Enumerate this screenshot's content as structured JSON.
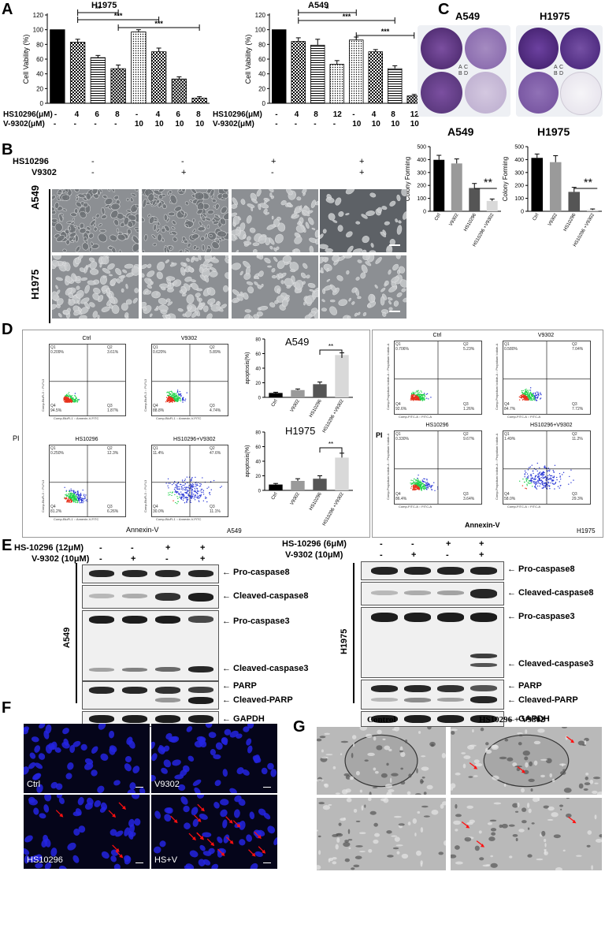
{
  "panels": {
    "A": "A",
    "B": "B",
    "C": "C",
    "D": "D",
    "E": "E",
    "F": "F",
    "G": "G"
  },
  "panel_A": {
    "left_title": "H1975",
    "right_title": "A549",
    "ylabel": "Cell Vability (%)",
    "row1_label": "HS10296(μM)",
    "row2_label": "V-9302(μM)",
    "left_row1": [
      "-",
      "4",
      "6",
      "8",
      "-",
      "4",
      "6",
      "8"
    ],
    "left_row2": [
      "-",
      "-",
      "-",
      "-",
      "10",
      "10",
      "10",
      "10"
    ],
    "right_row1": [
      "-",
      "4",
      "8",
      "12",
      "-",
      "4",
      "8",
      "12"
    ],
    "right_row2": [
      "-",
      "-",
      "-",
      "-",
      "10",
      "10",
      "10",
      "10"
    ],
    "left_sig": [
      "**",
      "***",
      "***"
    ],
    "right_sig": [
      "*",
      "***",
      "***"
    ],
    "ticks": [
      "0",
      "20",
      "40",
      "60",
      "80",
      "100",
      "120"
    ]
  },
  "panel_B": {
    "row1_label": "HS10296",
    "row2_label": "V9302",
    "row1": [
      "-",
      "-",
      "+",
      "+"
    ],
    "row2": [
      "-",
      "+",
      "-",
      "+"
    ],
    "cell_lines": [
      "A549",
      "H1975"
    ]
  },
  "panel_C": {
    "plate_titles": [
      "A549",
      "H1975"
    ],
    "well_letters": [
      "A",
      "B",
      "C",
      "D"
    ],
    "chart_titles": [
      "A549",
      "H1975"
    ],
    "ylabel": "Colony Forming",
    "xcats": [
      "Ctrl",
      "V9302",
      "HS10296",
      "HS10296 +V9302"
    ],
    "sig": "**",
    "ticks": [
      "0",
      "100",
      "200",
      "300",
      "400",
      "500"
    ]
  },
  "panel_D": {
    "a549_flow_titles": [
      "Ctrl",
      "V9302",
      "HS10296",
      "HS10296+V9302"
    ],
    "a549_q2": [
      "3.61%",
      "5.89%",
      "12.3%",
      "47.6%"
    ],
    "a549_q3": [
      "1.87%",
      "4.74%",
      "6.26%",
      "11.1%"
    ],
    "a549_q1": [
      "0.209%",
      "0.620%",
      "0.250%",
      "11.4%"
    ],
    "a549_q4": [
      "94.5%",
      "88.8%",
      "81.2%",
      "30.0%"
    ],
    "h1975_flow_titles": [
      "Ctrl",
      "V9302",
      "HS10296",
      "HS10296+V9302"
    ],
    "h1975_q2": [
      "5.23%",
      "7.04%",
      "9.67%",
      "11.2%"
    ],
    "h1975_q3": [
      "1.26%",
      "7.72%",
      "3.64%",
      "29.3%"
    ],
    "h1975_q1": [
      "0.706%",
      "0.580%",
      "0.330%",
      "1.49%"
    ],
    "h1975_q4": [
      "92.6%",
      "84.7%",
      "86.4%",
      "58.0%"
    ],
    "pi_label": "PI",
    "annexin_label": "Annexin-V",
    "a549_tag": "A549",
    "h1975_tag": "H1975",
    "bar_titles": [
      "A549",
      "H1975"
    ],
    "bar_ylabel": "apoptosis(%)",
    "bar_xcats": [
      "Ctrl",
      "V9302",
      "HS10296",
      "HS10296 +V9302"
    ],
    "sig": "**",
    "bar_ticks": [
      "0",
      "20",
      "40",
      "60",
      "80"
    ],
    "axis_y_a549": "Comp-BluFL3 :: PI-FL3",
    "axis_x_a549": "Comp-BluFL1 :: Annexin-V-FITC",
    "axis_y_h1975": "Comp-Propidium Iodide-A :: Propidium Iodide-A",
    "axis_x_h1975": "Comp-FITC-A :: FITC-A"
  },
  "panel_E": {
    "left_row1_label": "HS-10296 (12μM)",
    "left_row2_label": "V-9302 (10μM)",
    "right_row1_label": "HS-10296 (6μM)",
    "right_row2_label": "V-9302 (10μM)",
    "row1": [
      "-",
      "-",
      "+",
      "+"
    ],
    "row2": [
      "-",
      "+",
      "-",
      "+"
    ],
    "left_cell": "A549",
    "right_cell": "H1975",
    "band_labels": [
      "Pro-caspase8",
      "Cleaved-caspase8",
      "Pro-caspase3",
      "Cleaved-caspase3",
      "PARP",
      "Cleaved-PARP",
      "GAPDH"
    ]
  },
  "panel_F": {
    "labels": [
      "Ctrl",
      "V9302",
      "HS10296",
      "HS+V"
    ]
  },
  "panel_G": {
    "titles": [
      "Control",
      "HS10296 + V9302"
    ]
  },
  "chart_data": [
    {
      "type": "bar",
      "title": "H1975",
      "ylabel": "Cell Vability (%)",
      "ylim": [
        0,
        120
      ],
      "categories": [
        "1",
        "2",
        "3",
        "4",
        "5",
        "6",
        "7",
        "8"
      ],
      "values": [
        100,
        83,
        62,
        47,
        97,
        70,
        33,
        7
      ],
      "errors": [
        0,
        4,
        3,
        5,
        3,
        5,
        3,
        2
      ]
    },
    {
      "type": "bar",
      "title": "A549",
      "ylabel": "Cell Vability (%)",
      "ylim": [
        0,
        120
      ],
      "categories": [
        "1",
        "2",
        "3",
        "4",
        "5",
        "6",
        "7",
        "8"
      ],
      "values": [
        100,
        84,
        79,
        53,
        86,
        70,
        47,
        10
      ],
      "errors": [
        0,
        5,
        8,
        5,
        4,
        3,
        4,
        2
      ]
    },
    {
      "type": "bar",
      "title": "A549",
      "ylabel": "Colony Forming",
      "ylim": [
        0,
        500
      ],
      "categories": [
        "Ctrl",
        "V9302",
        "HS10296",
        "HS10296 +V9302"
      ],
      "values": [
        398,
        370,
        180,
        80
      ],
      "errors": [
        35,
        35,
        35,
        15
      ]
    },
    {
      "type": "bar",
      "title": "H1975",
      "ylabel": "Colony Forming",
      "ylim": [
        0,
        500
      ],
      "categories": [
        "Ctrl",
        "V9302",
        "HS10296",
        "HS10296 +V9302"
      ],
      "values": [
        413,
        380,
        150,
        10
      ],
      "errors": [
        30,
        50,
        35,
        8
      ]
    },
    {
      "type": "bar",
      "title": "A549",
      "ylabel": "apoptosis(%)",
      "ylim": [
        0,
        80
      ],
      "categories": [
        "Ctrl",
        "V9302",
        "HS10296",
        "HS10296 +V9302"
      ],
      "values": [
        6,
        10,
        18,
        58
      ],
      "errors": [
        1,
        1.5,
        3,
        3
      ]
    },
    {
      "type": "bar",
      "title": "H1975",
      "ylabel": "apoptosis(%)",
      "ylim": [
        0,
        80
      ],
      "categories": [
        "Ctrl",
        "V9302",
        "HS10296",
        "HS10296 +V9302"
      ],
      "values": [
        8,
        13,
        16,
        45
      ],
      "errors": [
        1.5,
        3,
        4,
        6
      ]
    }
  ],
  "colors": {
    "black": "#000000",
    "gray": "#9a9a9a",
    "dark_gray": "#555555",
    "light_gray": "#d9d9d9",
    "flow_blue": "#2a38d6",
    "flow_green": "#1fd24a",
    "flow_red": "#e7321c",
    "nucleus_blue": "#2424e0",
    "arrow_red": "#ff1010",
    "crystal_violet": "#6b3e8a"
  }
}
